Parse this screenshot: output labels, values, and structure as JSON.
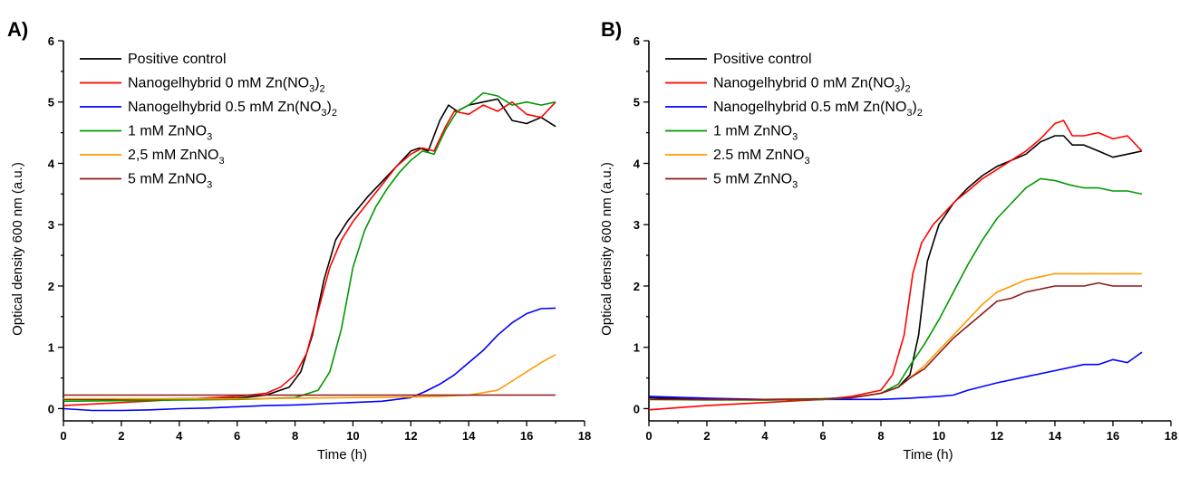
{
  "chart_data": [
    {
      "type": "line",
      "panel_label": "A)",
      "xlabel": "Time (h)",
      "ylabel": "Optical density 600 nm (a.u.)",
      "xlim": [
        0,
        18
      ],
      "ylim": [
        -0.2,
        6
      ],
      "xticks": [
        "0",
        "2",
        "4",
        "6",
        "8",
        "10",
        "12",
        "14",
        "16",
        "18"
      ],
      "yticks": [
        "0",
        "1",
        "2",
        "3",
        "4",
        "5",
        "6"
      ],
      "legend_position": "top-left",
      "series": [
        {
          "name": "Positive control",
          "color": "#000000",
          "x": [
            0,
            2,
            4,
            6,
            7,
            7.8,
            8.2,
            8.6,
            9,
            9.4,
            9.8,
            10.5,
            11,
            11.5,
            12,
            12.3,
            12.6,
            13,
            13.3,
            13.6,
            14,
            14.5,
            15,
            15.5,
            16,
            16.5,
            17
          ],
          "y": [
            0.15,
            0.15,
            0.16,
            0.17,
            0.22,
            0.35,
            0.6,
            1.2,
            2.1,
            2.75,
            3.05,
            3.45,
            3.7,
            3.95,
            4.2,
            4.25,
            4.2,
            4.7,
            4.95,
            4.85,
            4.95,
            5.0,
            5.05,
            4.7,
            4.65,
            4.75,
            4.6
          ]
        },
        {
          "name": "Nanogelhybrid 0 mM Zn(NO3)2",
          "name_main": "Nanogelhybrid 0 mM Zn(NO",
          "name_sub": "3",
          "name_end": ")",
          "name_sub2": "2",
          "color": "#ff0000",
          "x": [
            0,
            2,
            4,
            6,
            7,
            7.5,
            8,
            8.4,
            8.8,
            9.2,
            9.6,
            10,
            10.5,
            11,
            11.5,
            12,
            12.4,
            12.8,
            13.2,
            13.5,
            14,
            14.5,
            15,
            15.5,
            16,
            16.5,
            17
          ],
          "y": [
            0.05,
            0.1,
            0.15,
            0.2,
            0.25,
            0.35,
            0.55,
            0.9,
            1.6,
            2.3,
            2.75,
            3.05,
            3.35,
            3.65,
            3.95,
            4.15,
            4.25,
            4.2,
            4.6,
            4.85,
            4.8,
            4.95,
            4.85,
            5.0,
            4.8,
            4.75,
            5.0
          ]
        },
        {
          "name": "Nanogelhybrid 0.5 mM Zn(NO3)2",
          "name_main": "Nanogelhybrid 0.5 mM Zn(NO",
          "name_sub": "3",
          "name_end": ")",
          "name_sub2": "2",
          "color": "#0000ff",
          "x": [
            0,
            1,
            2,
            3,
            4,
            5,
            6,
            7,
            8,
            9,
            10,
            11,
            12,
            12.5,
            13,
            13.5,
            14,
            14.5,
            15,
            15.5,
            16,
            16.5,
            17
          ],
          "y": [
            0.0,
            -0.03,
            -0.03,
            -0.02,
            0.0,
            0.01,
            0.03,
            0.05,
            0.06,
            0.08,
            0.1,
            0.12,
            0.18,
            0.28,
            0.4,
            0.55,
            0.75,
            0.95,
            1.2,
            1.4,
            1.55,
            1.63,
            1.64
          ]
        },
        {
          "name": "1 mM ZnNO3",
          "name_main": "1 mM ZnNO",
          "name_sub": "3",
          "color": "#009900",
          "x": [
            0,
            2,
            4,
            6,
            8,
            8.8,
            9.2,
            9.6,
            10,
            10.4,
            10.8,
            11.2,
            11.6,
            12,
            12.4,
            12.8,
            13.2,
            13.6,
            14,
            14.5,
            15,
            15.5,
            16,
            16.5,
            17
          ],
          "y": [
            0.12,
            0.13,
            0.14,
            0.15,
            0.18,
            0.3,
            0.6,
            1.3,
            2.3,
            2.9,
            3.3,
            3.6,
            3.85,
            4.05,
            4.2,
            4.15,
            4.55,
            4.85,
            4.95,
            5.15,
            5.1,
            4.95,
            5.0,
            4.95,
            5.0
          ]
        },
        {
          "name": "2,5 mM ZnNO3",
          "name_main": "2,5 mM ZnNO",
          "name_sub": "3",
          "color": "#ff9900",
          "x": [
            0,
            2,
            4,
            6,
            8,
            10,
            12,
            13,
            14,
            15,
            15.5,
            16,
            16.5,
            17
          ],
          "y": [
            0.16,
            0.16,
            0.16,
            0.16,
            0.17,
            0.18,
            0.19,
            0.2,
            0.22,
            0.3,
            0.45,
            0.6,
            0.75,
            0.88
          ]
        },
        {
          "name": "5 mM ZnNO3",
          "name_main": "5 mM ZnNO",
          "name_sub": "3",
          "color": "#8b1a1a",
          "x": [
            0,
            2,
            4,
            6,
            8,
            10,
            12,
            14,
            16,
            17
          ],
          "y": [
            0.22,
            0.22,
            0.22,
            0.22,
            0.22,
            0.22,
            0.22,
            0.22,
            0.22,
            0.22
          ]
        }
      ]
    },
    {
      "type": "line",
      "panel_label": "B)",
      "xlabel": "Time (h)",
      "ylabel": "Optical density 600 nm (a.u.)",
      "xlim": [
        0,
        18
      ],
      "ylim": [
        -0.2,
        6
      ],
      "xticks": [
        "0",
        "2",
        "4",
        "6",
        "8",
        "10",
        "12",
        "14",
        "16",
        "18"
      ],
      "yticks": [
        "0",
        "1",
        "2",
        "3",
        "4",
        "5",
        "6"
      ],
      "legend_position": "top-left",
      "series": [
        {
          "name": "Positive control",
          "color": "#000000",
          "x": [
            0,
            2,
            4,
            6,
            7,
            8,
            8.6,
            9,
            9.3,
            9.6,
            10,
            10.5,
            11,
            11.5,
            12,
            12.5,
            13,
            13.5,
            14,
            14.3,
            14.6,
            15,
            15.5,
            16,
            16.5,
            17
          ],
          "y": [
            0.18,
            0.15,
            0.14,
            0.15,
            0.18,
            0.25,
            0.35,
            0.55,
            1.2,
            2.4,
            3.0,
            3.35,
            3.6,
            3.8,
            3.95,
            4.05,
            4.15,
            4.35,
            4.45,
            4.45,
            4.3,
            4.3,
            4.2,
            4.1,
            4.15,
            4.2
          ]
        },
        {
          "name": "Nanogelhybrid 0 mM Zn(NO3)2",
          "name_main": "Nanogelhybrid 0 mM Zn(NO",
          "name_sub": "3",
          "name_end": ")",
          "name_sub2": "2",
          "color": "#ff0000",
          "x": [
            0,
            2,
            4,
            6,
            7,
            8,
            8.4,
            8.8,
            9.1,
            9.4,
            9.8,
            10.2,
            10.6,
            11,
            11.5,
            12,
            12.5,
            13,
            13.5,
            14,
            14.3,
            14.6,
            15,
            15.5,
            16,
            16.5,
            17
          ],
          "y": [
            -0.02,
            0.05,
            0.1,
            0.15,
            0.2,
            0.3,
            0.55,
            1.2,
            2.2,
            2.7,
            3.0,
            3.2,
            3.4,
            3.55,
            3.75,
            3.9,
            4.05,
            4.2,
            4.4,
            4.65,
            4.7,
            4.45,
            4.45,
            4.5,
            4.4,
            4.45,
            4.2
          ]
        },
        {
          "name": "Nanogelhybrid 0.5 mM Zn(NO3)2",
          "name_main": "Nanogelhybrid 0.5 mM Zn(NO",
          "name_sub": "3",
          "name_end": ")",
          "name_sub2": "2",
          "color": "#0000ff",
          "x": [
            0,
            2,
            4,
            6,
            8,
            9,
            10,
            10.5,
            11,
            12,
            13,
            14,
            15,
            15.5,
            16,
            16.5,
            17
          ],
          "y": [
            0.2,
            0.17,
            0.15,
            0.15,
            0.15,
            0.17,
            0.2,
            0.22,
            0.3,
            0.42,
            0.52,
            0.62,
            0.72,
            0.72,
            0.8,
            0.75,
            0.92
          ]
        },
        {
          "name": "1 mM ZnNO3",
          "name_main": "1 mM ZnNO",
          "name_sub": "3",
          "color": "#009900",
          "x": [
            0,
            2,
            4,
            6,
            7,
            8,
            8.6,
            9,
            9.5,
            10,
            10.5,
            11,
            11.5,
            12,
            12.5,
            13,
            13.5,
            14,
            14.5,
            15,
            15.5,
            16,
            16.5,
            17
          ],
          "y": [
            0.15,
            0.14,
            0.14,
            0.15,
            0.18,
            0.25,
            0.4,
            0.7,
            1.05,
            1.45,
            1.9,
            2.35,
            2.75,
            3.1,
            3.35,
            3.6,
            3.75,
            3.72,
            3.65,
            3.6,
            3.6,
            3.55,
            3.55,
            3.5
          ]
        },
        {
          "name": "2.5 mM ZnNO3",
          "name_main": "2.5 mM ZnNO",
          "name_sub": "3",
          "color": "#ff9900",
          "x": [
            0,
            2,
            4,
            6,
            7,
            8,
            8.6,
            9,
            9.5,
            10,
            10.5,
            11,
            11.5,
            12,
            12.5,
            13,
            13.5,
            14,
            14.5,
            15,
            15.5,
            16,
            16.5,
            17
          ],
          "y": [
            0.15,
            0.15,
            0.15,
            0.16,
            0.18,
            0.25,
            0.35,
            0.5,
            0.7,
            0.95,
            1.2,
            1.45,
            1.7,
            1.9,
            2.0,
            2.1,
            2.15,
            2.2,
            2.2,
            2.2,
            2.2,
            2.2,
            2.2,
            2.2
          ]
        },
        {
          "name": "5 mM ZnNO3",
          "name_main": "5 mM ZnNO",
          "name_sub": "3",
          "color": "#8b1a1a",
          "x": [
            0,
            2,
            4,
            6,
            7,
            8,
            8.6,
            9,
            9.5,
            10,
            10.5,
            11,
            11.5,
            12,
            12.5,
            13,
            13.5,
            14,
            14.5,
            15,
            15.5,
            16,
            16.5,
            17
          ],
          "y": [
            0.15,
            0.15,
            0.15,
            0.16,
            0.18,
            0.25,
            0.35,
            0.5,
            0.65,
            0.9,
            1.15,
            1.35,
            1.55,
            1.75,
            1.8,
            1.9,
            1.95,
            2.0,
            2.0,
            2.0,
            2.05,
            2.0,
            2.0,
            2.0
          ]
        }
      ]
    }
  ]
}
